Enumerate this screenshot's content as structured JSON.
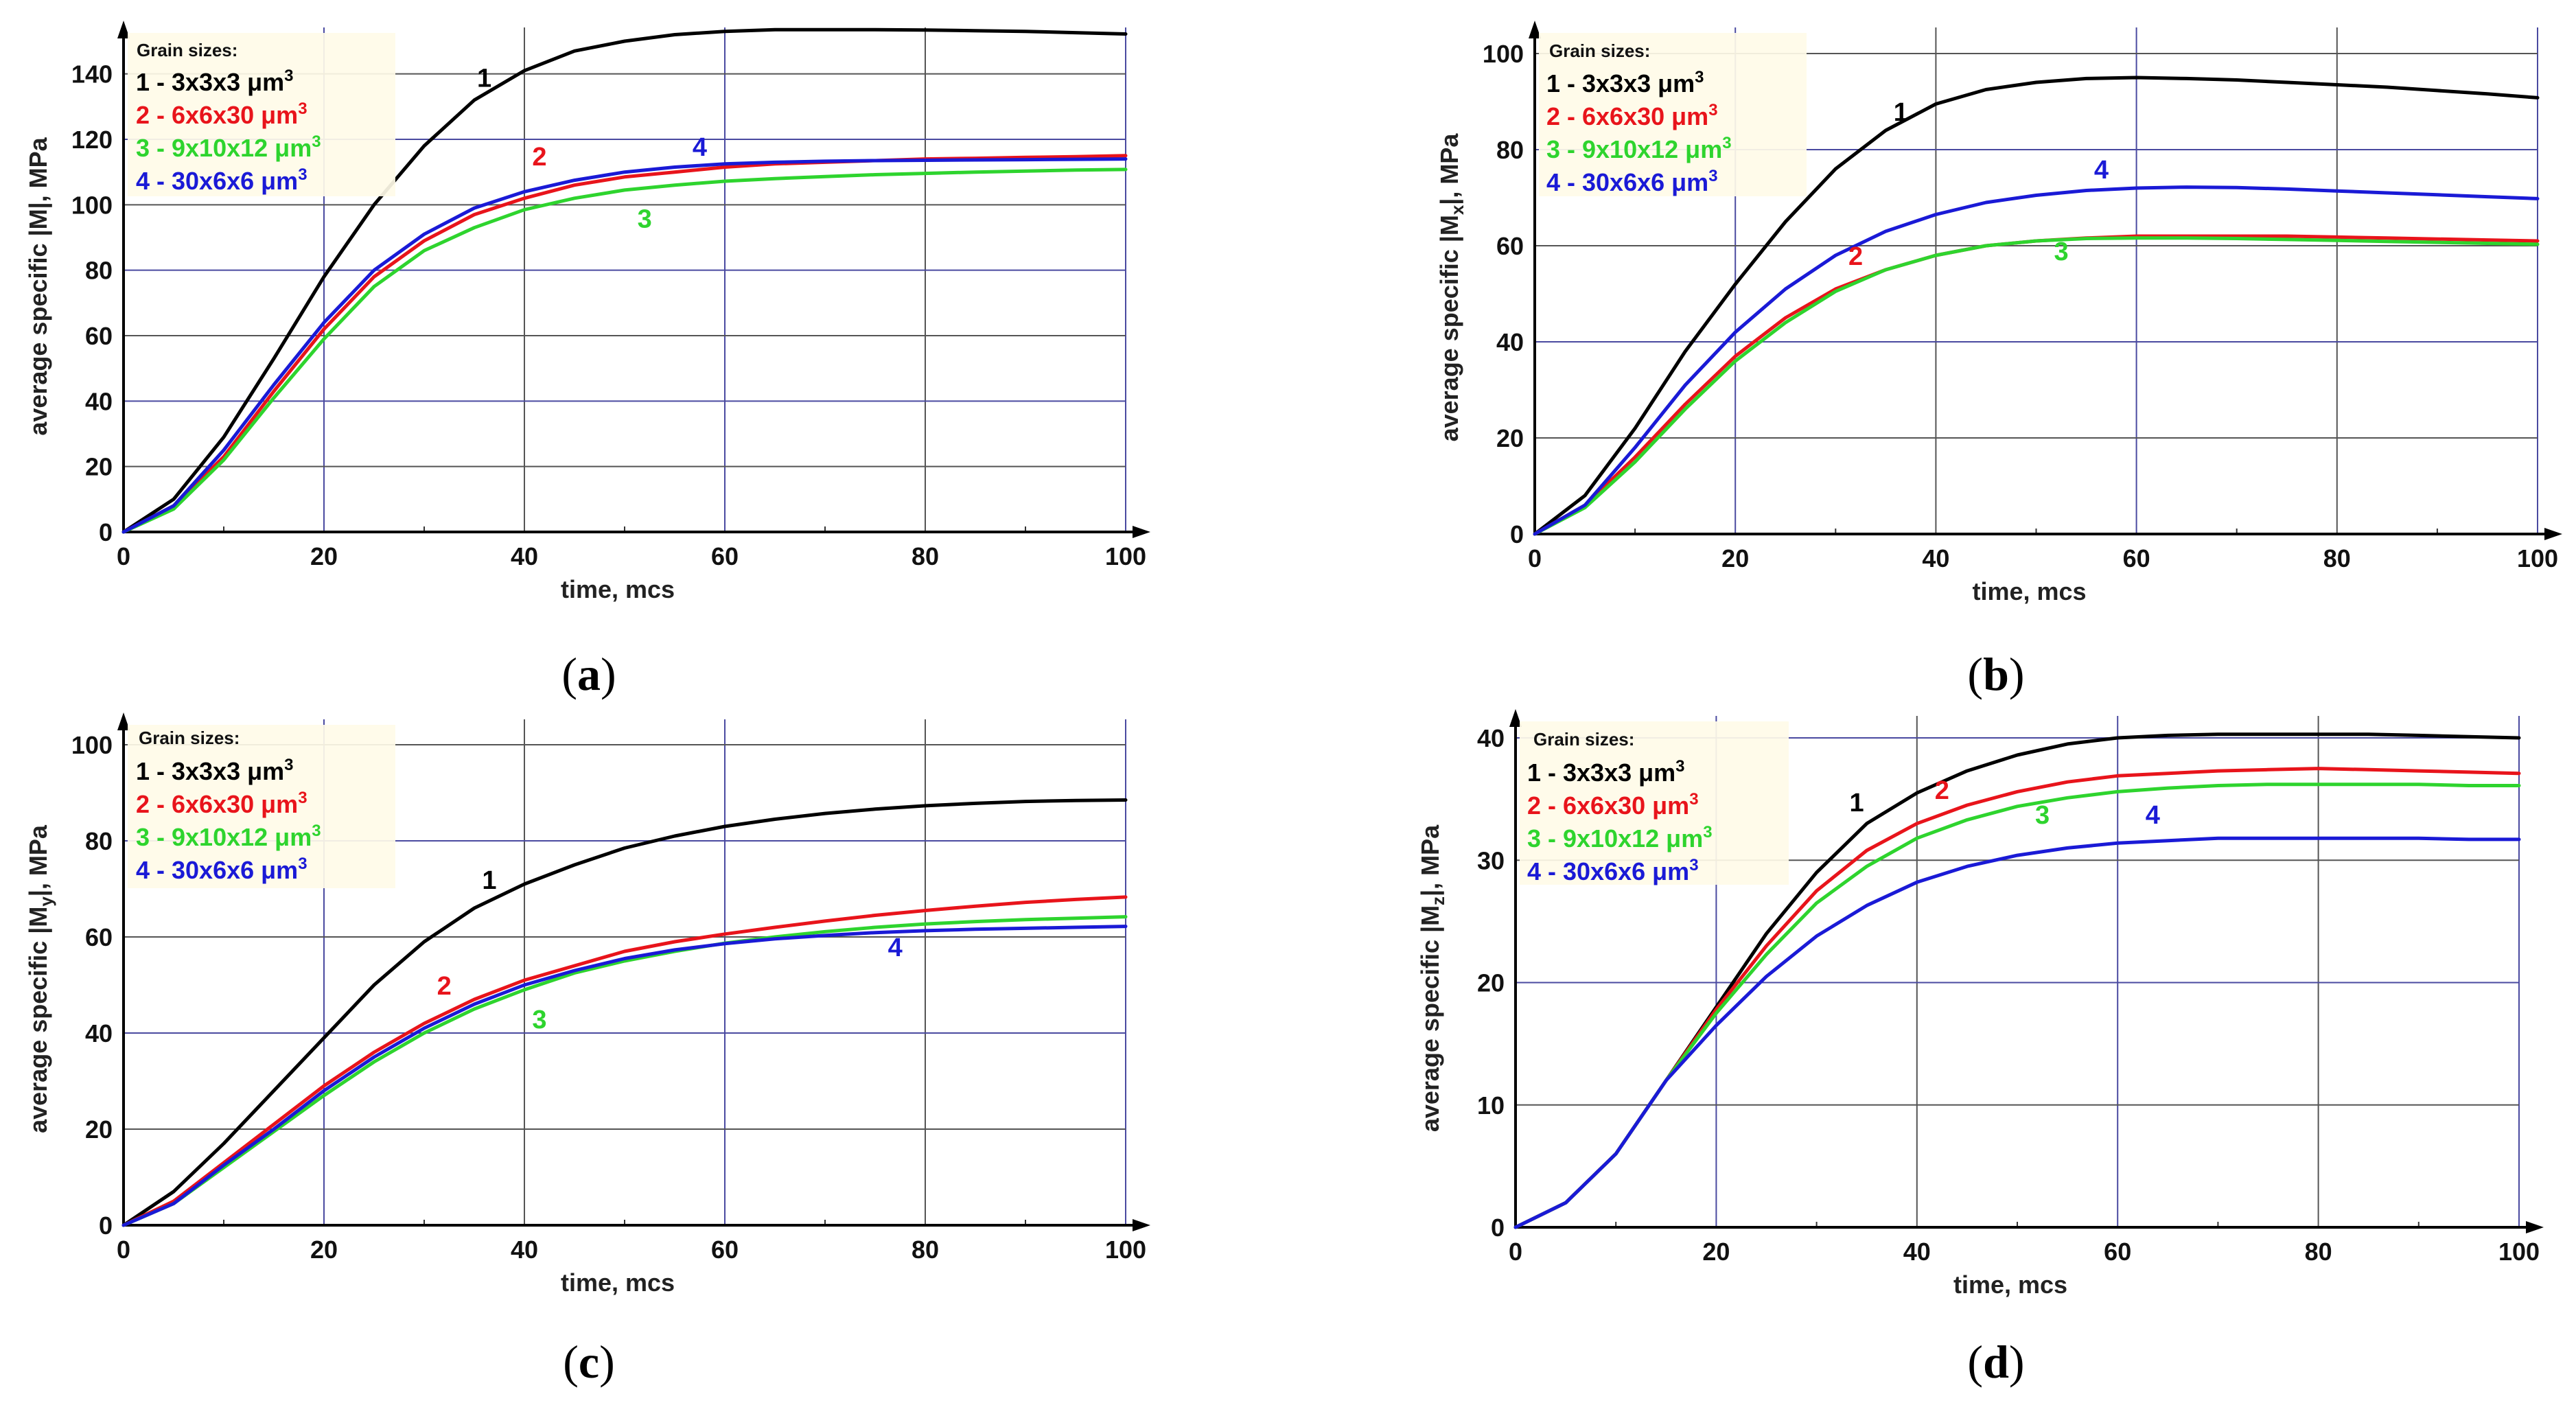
{
  "chart_data": [
    {
      "id": "a",
      "type": "line",
      "caption": {
        "open": "(",
        "letter": "a",
        "close": ")"
      },
      "xlabel": "time, mcs",
      "ylabel": {
        "pre": "average specific |M",
        "sub": "",
        "post": "|, MPa"
      },
      "xlim": [
        0,
        100
      ],
      "ylim": [
        0,
        150
      ],
      "xticks": [
        "0",
        "20",
        "40",
        "60",
        "80",
        "100"
      ],
      "yticks": [
        "0",
        "20",
        "40",
        "60",
        "80",
        "100",
        "120",
        "140"
      ],
      "legend_title": "Grain sizes:",
      "legend": [
        "1 - 3x3x3 μm",
        "2 - 6x6x30 μm",
        "3 - 9x10x12 μm",
        "4 - 30x6x6 μm"
      ],
      "series": [
        {
          "name": "1",
          "color": "#000000",
          "x": [
            0,
            5,
            10,
            15,
            20,
            25,
            30,
            35,
            40,
            45,
            50,
            55,
            60,
            65,
            70,
            75,
            80,
            85,
            90,
            95,
            100
          ],
          "y": [
            0,
            10,
            29,
            53,
            78,
            100,
            118,
            132,
            141,
            147,
            150,
            152,
            153,
            153.5,
            153.5,
            153.5,
            153.4,
            153.2,
            153,
            152.6,
            152.2
          ]
        },
        {
          "name": "2",
          "color": "#e8141b",
          "x": [
            0,
            5,
            10,
            15,
            20,
            25,
            30,
            35,
            40,
            45,
            50,
            55,
            60,
            65,
            70,
            75,
            80,
            85,
            90,
            95,
            100
          ],
          "y": [
            0,
            8,
            23,
            43,
            62,
            78,
            89,
            97,
            102,
            106,
            108.5,
            110,
            111.5,
            112.5,
            113,
            113.5,
            114,
            114.2,
            114.5,
            114.7,
            115
          ]
        },
        {
          "name": "3",
          "color": "#2ed42e",
          "x": [
            0,
            5,
            10,
            15,
            20,
            25,
            30,
            35,
            40,
            45,
            50,
            55,
            60,
            65,
            70,
            75,
            80,
            85,
            90,
            95,
            100
          ],
          "y": [
            0,
            7,
            22,
            41,
            59,
            75,
            86,
            93,
            98.5,
            102,
            104.5,
            106,
            107.2,
            108,
            108.6,
            109.2,
            109.6,
            110,
            110.3,
            110.6,
            110.8
          ]
        },
        {
          "name": "4",
          "color": "#1a1ad6",
          "x": [
            0,
            5,
            10,
            15,
            20,
            25,
            30,
            35,
            40,
            45,
            50,
            55,
            60,
            65,
            70,
            75,
            80,
            85,
            90,
            95,
            100
          ],
          "y": [
            0,
            8,
            25,
            45,
            64,
            80,
            91,
            99,
            104,
            107.5,
            110,
            111.5,
            112.5,
            113,
            113.3,
            113.5,
            113.6,
            113.7,
            113.8,
            113.9,
            114
          ]
        }
      ],
      "curve_labels": [
        {
          "text": "1",
          "x": 36,
          "y": 136,
          "color": "#000000"
        },
        {
          "text": "2",
          "x": 41.5,
          "y": 112,
          "color": "#e8141b"
        },
        {
          "text": "3",
          "x": 52,
          "y": 93,
          "color": "#2ed42e"
        },
        {
          "text": "4",
          "x": 57.5,
          "y": 115,
          "color": "#1a1ad6"
        }
      ]
    },
    {
      "id": "b",
      "type": "line",
      "caption": {
        "open": "(",
        "letter": "b",
        "close": ")"
      },
      "xlabel": "time, mcs",
      "ylabel": {
        "pre": "average specific |M",
        "sub": "x",
        "post": "|, MPa"
      },
      "xlim": [
        0,
        100
      ],
      "ylim": [
        0,
        100
      ],
      "xticks": [
        "0",
        "20",
        "40",
        "60",
        "80",
        "100"
      ],
      "yticks": [
        "0",
        "20",
        "40",
        "60",
        "80",
        "100"
      ],
      "legend_title": "Grain sizes:",
      "legend": [
        "1 - 3x3x3 μm",
        "2 - 6x6x30 μm",
        "3 - 9x10x12 μm",
        "4 - 30x6x6 μm"
      ],
      "series": [
        {
          "name": "1",
          "color": "#000000",
          "x": [
            0,
            5,
            10,
            15,
            20,
            25,
            30,
            35,
            40,
            45,
            50,
            55,
            60,
            65,
            70,
            75,
            80,
            85,
            90,
            95,
            100
          ],
          "y": [
            0,
            8,
            22,
            38,
            52,
            65,
            76,
            84,
            89.5,
            92.5,
            94,
            94.8,
            95,
            94.8,
            94.5,
            94,
            93.5,
            93,
            92.3,
            91.6,
            90.8
          ]
        },
        {
          "name": "2",
          "color": "#e8141b",
          "x": [
            0,
            5,
            10,
            15,
            20,
            25,
            30,
            35,
            40,
            45,
            50,
            55,
            60,
            65,
            70,
            75,
            80,
            85,
            90,
            95,
            100
          ],
          "y": [
            0,
            6,
            16,
            27,
            37,
            45,
            51,
            55,
            58,
            60,
            61,
            61.6,
            62,
            62,
            62,
            62,
            61.8,
            61.6,
            61.4,
            61.2,
            61
          ]
        },
        {
          "name": "3",
          "color": "#2ed42e",
          "x": [
            0,
            5,
            10,
            15,
            20,
            25,
            30,
            35,
            40,
            45,
            50,
            55,
            60,
            65,
            70,
            75,
            80,
            85,
            90,
            95,
            100
          ],
          "y": [
            0,
            5.5,
            15,
            26,
            36,
            44,
            50.5,
            55,
            58,
            60,
            61,
            61.5,
            61.6,
            61.6,
            61.5,
            61.3,
            61.1,
            60.9,
            60.7,
            60.5,
            60.3
          ]
        },
        {
          "name": "4",
          "color": "#1a1ad6",
          "x": [
            0,
            5,
            10,
            15,
            20,
            25,
            30,
            35,
            40,
            45,
            50,
            55,
            60,
            65,
            70,
            75,
            80,
            85,
            90,
            95,
            100
          ],
          "y": [
            0,
            6,
            18,
            31,
            42,
            51,
            58,
            63,
            66.5,
            69,
            70.5,
            71.5,
            72,
            72.2,
            72.1,
            71.8,
            71.4,
            71,
            70.6,
            70.2,
            69.8
          ]
        }
      ],
      "curve_labels": [
        {
          "text": "1",
          "x": 36.5,
          "y": 86,
          "color": "#000000"
        },
        {
          "text": "2",
          "x": 32,
          "y": 56,
          "color": "#e8141b"
        },
        {
          "text": "3",
          "x": 52.5,
          "y": 57,
          "color": "#2ed42e"
        },
        {
          "text": "4",
          "x": 56.5,
          "y": 74,
          "color": "#1a1ad6"
        }
      ]
    },
    {
      "id": "c",
      "type": "line",
      "caption": {
        "open": "(",
        "letter": "c",
        "close": ")"
      },
      "xlabel": "time, mcs",
      "ylabel": {
        "pre": "average specific |M",
        "sub": "y",
        "post": "|, MPa"
      },
      "xlim": [
        0,
        100
      ],
      "ylim": [
        0,
        100
      ],
      "xticks": [
        "0",
        "20",
        "40",
        "60",
        "80",
        "100"
      ],
      "yticks": [
        "0",
        "20",
        "40",
        "60",
        "80",
        "100"
      ],
      "legend_title": "Grain sizes:",
      "legend": [
        "1 - 3x3x3 μm",
        "2 - 6x6x30 μm",
        "3 - 9x10x12 μm",
        "4 - 30x6x6 μm"
      ],
      "series": [
        {
          "name": "1",
          "color": "#000000",
          "x": [
            0,
            5,
            10,
            15,
            20,
            25,
            30,
            35,
            40,
            45,
            50,
            55,
            60,
            65,
            70,
            75,
            80,
            85,
            90,
            95,
            100
          ],
          "y": [
            0,
            7,
            17,
            28,
            39,
            50,
            59,
            66,
            71,
            75,
            78.5,
            81,
            83,
            84.5,
            85.7,
            86.6,
            87.3,
            87.8,
            88.2,
            88.4,
            88.5
          ]
        },
        {
          "name": "2",
          "color": "#e8141b",
          "x": [
            0,
            5,
            10,
            15,
            20,
            25,
            30,
            35,
            40,
            45,
            50,
            55,
            60,
            65,
            70,
            75,
            80,
            85,
            90,
            95,
            100
          ],
          "y": [
            0,
            5,
            13,
            21,
            29,
            36,
            42,
            47,
            51,
            54,
            57,
            59,
            60.6,
            62,
            63.3,
            64.5,
            65.5,
            66.4,
            67.2,
            67.8,
            68.3
          ]
        },
        {
          "name": "3",
          "color": "#2ed42e",
          "x": [
            0,
            5,
            10,
            15,
            20,
            25,
            30,
            35,
            40,
            45,
            50,
            55,
            60,
            65,
            70,
            75,
            80,
            85,
            90,
            95,
            100
          ],
          "y": [
            0,
            4.5,
            12,
            19.5,
            27,
            34,
            40,
            45,
            49,
            52.5,
            55,
            57,
            58.7,
            60,
            61.1,
            62,
            62.7,
            63.2,
            63.6,
            63.9,
            64.2
          ]
        },
        {
          "name": "4",
          "color": "#1a1ad6",
          "x": [
            0,
            5,
            10,
            15,
            20,
            25,
            30,
            35,
            40,
            45,
            50,
            55,
            60,
            65,
            70,
            75,
            80,
            85,
            90,
            95,
            100
          ],
          "y": [
            0,
            4.5,
            12.5,
            20,
            28,
            35,
            41,
            46,
            50,
            53,
            55.5,
            57.3,
            58.6,
            59.6,
            60.3,
            60.9,
            61.3,
            61.6,
            61.8,
            62,
            62.2
          ]
        }
      ],
      "curve_labels": [
        {
          "text": "1",
          "x": 36.5,
          "y": 70,
          "color": "#000000"
        },
        {
          "text": "2",
          "x": 32,
          "y": 48,
          "color": "#e8141b"
        },
        {
          "text": "3",
          "x": 41.5,
          "y": 41,
          "color": "#2ed42e"
        },
        {
          "text": "4",
          "x": 77,
          "y": 56,
          "color": "#1a1ad6"
        }
      ]
    },
    {
      "id": "d",
      "type": "line",
      "caption": {
        "open": "(",
        "letter": "d",
        "close": ")"
      },
      "xlabel": "time, mcs",
      "ylabel": {
        "pre": "average specific |M",
        "sub": "z",
        "post": "|, MPa"
      },
      "xlim": [
        0,
        100
      ],
      "ylim": [
        0,
        40
      ],
      "xticks": [
        "0",
        "20",
        "40",
        "60",
        "80",
        "100"
      ],
      "yticks": [
        "0",
        "10",
        "20",
        "30",
        "40"
      ],
      "legend_title": "Grain sizes:",
      "legend": [
        "1 - 3x3x3 μm",
        "2 - 6x6x30 μm",
        "3 - 9x10x12 μm",
        "4 - 30x6x6 μm"
      ],
      "series": [
        {
          "name": "1",
          "color": "#000000",
          "x": [
            0,
            5,
            10,
            15,
            20,
            25,
            30,
            35,
            40,
            45,
            50,
            55,
            60,
            65,
            70,
            75,
            80,
            85,
            90,
            95,
            100
          ],
          "y": [
            0,
            2,
            6,
            12,
            18,
            24,
            29,
            33,
            35.5,
            37.3,
            38.6,
            39.5,
            40,
            40.2,
            40.3,
            40.3,
            40.3,
            40.3,
            40.2,
            40.1,
            40
          ]
        },
        {
          "name": "2",
          "color": "#e8141b",
          "x": [
            0,
            5,
            10,
            15,
            20,
            25,
            30,
            35,
            40,
            45,
            50,
            55,
            60,
            65,
            70,
            75,
            80,
            85,
            90,
            95,
            100
          ],
          "y": [
            0,
            2,
            6,
            12,
            17.8,
            23,
            27.5,
            30.8,
            33,
            34.5,
            35.6,
            36.4,
            36.9,
            37.1,
            37.3,
            37.4,
            37.5,
            37.4,
            37.3,
            37.2,
            37.1
          ]
        },
        {
          "name": "3",
          "color": "#2ed42e",
          "x": [
            0,
            5,
            10,
            15,
            20,
            25,
            30,
            35,
            40,
            45,
            50,
            55,
            60,
            65,
            70,
            75,
            80,
            85,
            90,
            95,
            100
          ],
          "y": [
            0,
            2,
            6,
            12,
            17.5,
            22.3,
            26.5,
            29.5,
            31.8,
            33.3,
            34.4,
            35.1,
            35.6,
            35.9,
            36.1,
            36.2,
            36.2,
            36.2,
            36.2,
            36.1,
            36.1
          ]
        },
        {
          "name": "4",
          "color": "#1a1ad6",
          "x": [
            0,
            5,
            10,
            15,
            20,
            25,
            30,
            35,
            40,
            45,
            50,
            55,
            60,
            65,
            70,
            75,
            80,
            85,
            90,
            95,
            100
          ],
          "y": [
            0,
            2,
            6,
            12,
            16.5,
            20.5,
            23.8,
            26.3,
            28.2,
            29.5,
            30.4,
            31,
            31.4,
            31.6,
            31.8,
            31.8,
            31.8,
            31.8,
            31.8,
            31.7,
            31.7
          ]
        }
      ],
      "curve_labels": [
        {
          "text": "1",
          "x": 34,
          "y": 34,
          "color": "#000000"
        },
        {
          "text": "2",
          "x": 42.5,
          "y": 35,
          "color": "#e8141b"
        },
        {
          "text": "3",
          "x": 52.5,
          "y": 33,
          "color": "#2ed42e"
        },
        {
          "text": "4",
          "x": 63.5,
          "y": 33,
          "color": "#1a1ad6"
        }
      ]
    }
  ]
}
